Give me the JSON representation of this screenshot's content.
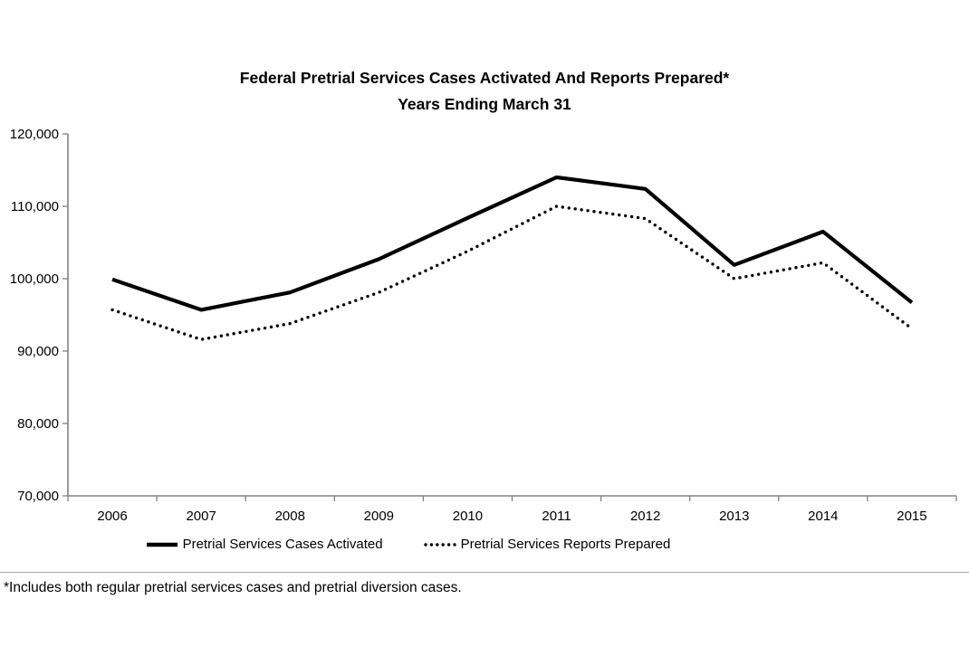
{
  "title": {
    "line1": "Federal Pretrial Services Cases Activated And Reports Prepared*",
    "line2": "Years Ending March 31"
  },
  "legend": {
    "solid_label": "Pretrial Services Cases Activated",
    "dotted_label": "Pretrial Services Reports Prepared"
  },
  "footnote": "*Includes both regular pretrial services cases and pretrial diversion cases.",
  "colors": {
    "series_line": "#000000",
    "axis": "#808080",
    "text": "#000000",
    "background": "#ffffff",
    "footnote_rule": "#a6a6a6"
  },
  "chart_data": {
    "type": "line",
    "title": "Federal Pretrial Services Cases Activated And Reports Prepared* Years Ending March 31",
    "categories": [
      "2006",
      "2007",
      "2008",
      "2009",
      "2010",
      "2011",
      "2012",
      "2013",
      "2014",
      "2015"
    ],
    "series": [
      {
        "name": "Pretrial Services Cases Activated",
        "style": "solid",
        "values": [
          99900,
          95700,
          98100,
          102700,
          108400,
          114000,
          112400,
          101900,
          106500,
          96700
        ]
      },
      {
        "name": "Pretrial Services Reports Prepared",
        "style": "dotted",
        "values": [
          95700,
          91600,
          93800,
          98100,
          103800,
          110000,
          108300,
          100000,
          102200,
          93100
        ]
      }
    ],
    "xlabel": "",
    "ylabel": "",
    "ylim": [
      70000,
      120000
    ],
    "ytick_step": 10000,
    "ytick_labels": [
      "70,000",
      "80,000",
      "90,000",
      "100,000",
      "110,000",
      "120,000"
    ],
    "grid": false,
    "legend_position": "bottom"
  }
}
